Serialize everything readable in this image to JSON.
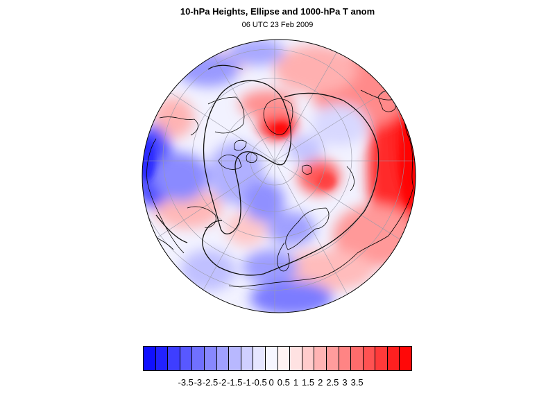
{
  "title": "10-hPa Heights, Ellipse and 1000-hPa T anom",
  "subtitle": "06 UTC 23 Feb 2009",
  "colorbar": {
    "colors": [
      "#1010ff",
      "#2222ff",
      "#3e3eff",
      "#5858ff",
      "#7070ff",
      "#8888ff",
      "#a0a0ff",
      "#b8b8ff",
      "#d0d0ff",
      "#e6e6ff",
      "#f6f6ff",
      "#fff4f4",
      "#ffe2e2",
      "#ffcccc",
      "#ffb4b4",
      "#ff9c9c",
      "#ff8484",
      "#ff6c6c",
      "#ff5252",
      "#ff3a3a",
      "#ff2020",
      "#ff0808"
    ],
    "ticks": [
      "-3.5",
      "-3",
      "-2.5",
      "-2",
      "-1.5",
      "-1",
      "-0.5",
      "0",
      "0.5",
      "1",
      "1.5",
      "2",
      "2.5",
      "3",
      "3.5"
    ]
  }
}
